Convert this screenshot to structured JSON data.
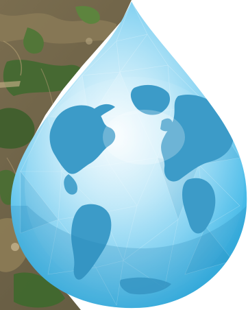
{
  "colors": {
    "background": "#ffffff",
    "terrain_base": "#6f6448",
    "terrain_green": "#3f6a2e",
    "terrain_tan": "#a08a63",
    "drop_outer": "#4cc0ea",
    "drop_mid": "#8fd7f3",
    "drop_highlight": "#e9f7fc",
    "globe_land": "#3c9bc8",
    "globe_land_dark": "#2a7ea9",
    "globe_ocean_light": "#bfe8f8"
  },
  "icons": {
    "drop": "water-drop-icon",
    "globe": "globe-icon"
  }
}
